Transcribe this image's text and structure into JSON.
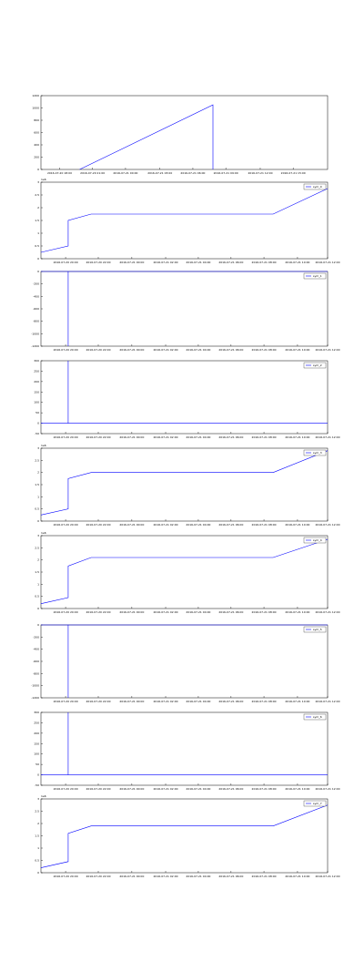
{
  "chart_data": [
    {
      "type": "line",
      "xlim": [
        0,
        10
      ],
      "ylim": [
        0,
        1200
      ],
      "yticks": [
        0,
        200,
        400,
        600,
        800,
        1000,
        1200
      ],
      "xticks": [
        {
          "value": 0.65,
          "label": "2016-07-20 18:00"
        },
        {
          "value": 1.8,
          "label": "2016-07-20 21:00"
        },
        {
          "value": 2.95,
          "label": "2016-07-21 00:00"
        },
        {
          "value": 4.15,
          "label": "2016-07-21 03:00"
        },
        {
          "value": 5.3,
          "label": "2016-07-21 06:00"
        },
        {
          "value": 6.45,
          "label": "2016-07-21 09:00"
        },
        {
          "value": 7.65,
          "label": "2016-07-21 12:00"
        },
        {
          "value": 8.8,
          "label": "2016-07-21 15:00"
        }
      ],
      "x": [
        1.35,
        6.0,
        6.0
      ],
      "series": [
        {
          "color": "#0000ff",
          "values": [
            0,
            1050,
            0
          ]
        }
      ]
    },
    {
      "type": "line",
      "xlim": [
        0,
        10
      ],
      "ylim": [
        0,
        3
      ],
      "yticks": [
        0,
        0.5,
        1,
        1.5,
        2,
        2.5,
        3
      ],
      "offset_label": "1e6",
      "xticks": [
        {
          "value": 0.86,
          "label": "2016-07-20 20:00"
        },
        {
          "value": 2.0,
          "label": "2016-07-20 22:00"
        },
        {
          "value": 3.17,
          "label": "2016-07-21 00:00"
        },
        {
          "value": 4.35,
          "label": "2016-07-21 02:00"
        },
        {
          "value": 5.49,
          "label": "2016-07-21 04:00"
        },
        {
          "value": 6.63,
          "label": "2016-07-21 06:00"
        },
        {
          "value": 7.78,
          "label": "2016-07-21 08:00"
        },
        {
          "value": 8.95,
          "label": "2016-07-21 10:00"
        },
        {
          "value": 10,
          "label": "2016-07-21 12:00"
        }
      ],
      "x": [
        0,
        0.95,
        0.95,
        1.75,
        8.1,
        10
      ],
      "series": [
        {
          "name": "sym_0",
          "color": "#0000ff",
          "values": [
            0.25,
            0.5,
            1.5,
            1.75,
            1.75,
            2.75
          ]
        }
      ]
    },
    {
      "type": "line",
      "xlim": [
        0,
        10
      ],
      "ylim": [
        -1200,
        0
      ],
      "yticks": [
        -1200,
        -1000,
        -800,
        -600,
        -400,
        -200,
        0
      ],
      "xticks": [
        {
          "value": 0.86,
          "label": "2016-07-20 20:00"
        },
        {
          "value": 2.0,
          "label": "2016-07-20 22:00"
        },
        {
          "value": 3.17,
          "label": "2016-07-21 00:00"
        },
        {
          "value": 4.35,
          "label": "2016-07-21 02:00"
        },
        {
          "value": 5.49,
          "label": "2016-07-21 04:00"
        },
        {
          "value": 6.63,
          "label": "2016-07-21 06:00"
        },
        {
          "value": 7.78,
          "label": "2016-07-21 08:00"
        },
        {
          "value": 8.95,
          "label": "2016-07-21 10:00"
        },
        {
          "value": 10,
          "label": "2016-07-21 12:00"
        }
      ],
      "x": [
        0,
        0.95,
        0.95,
        0.95,
        10
      ],
      "series": [
        {
          "name": "sym_1",
          "color": "#0000ff",
          "values": [
            0,
            0,
            -1200,
            0,
            0
          ]
        }
      ]
    },
    {
      "type": "line",
      "xlim": [
        0,
        10
      ],
      "ylim": [
        -50,
        300
      ],
      "yticks": [
        -50,
        0,
        50,
        100,
        150,
        200,
        250,
        300
      ],
      "xticks": [
        {
          "value": 0.86,
          "label": "2016-07-20 20:00"
        },
        {
          "value": 2.0,
          "label": "2016-07-20 22:00"
        },
        {
          "value": 3.17,
          "label": "2016-07-21 00:00"
        },
        {
          "value": 4.35,
          "label": "2016-07-21 02:00"
        },
        {
          "value": 5.49,
          "label": "2016-07-21 04:00"
        },
        {
          "value": 6.63,
          "label": "2016-07-21 06:00"
        },
        {
          "value": 7.78,
          "label": "2016-07-21 08:00"
        },
        {
          "value": 8.95,
          "label": "2016-07-21 10:00"
        },
        {
          "value": 10,
          "label": "2016-07-21 12:00"
        }
      ],
      "x": [
        0,
        0.95,
        0.95,
        0.95,
        10
      ],
      "series": [
        {
          "name": "sym_2",
          "color": "#0000ff",
          "values": [
            0,
            0,
            300,
            0,
            0
          ]
        }
      ]
    },
    {
      "type": "line",
      "xlim": [
        0,
        10
      ],
      "ylim": [
        0,
        3
      ],
      "yticks": [
        0,
        0.5,
        1,
        1.5,
        2,
        2.5,
        3
      ],
      "offset_label": "1e6",
      "xticks": [
        {
          "value": 0.86,
          "label": "2016-07-20 20:00"
        },
        {
          "value": 2.0,
          "label": "2016-07-20 22:00"
        },
        {
          "value": 3.17,
          "label": "2016-07-21 00:00"
        },
        {
          "value": 4.35,
          "label": "2016-07-21 02:00"
        },
        {
          "value": 5.49,
          "label": "2016-07-21 04:00"
        },
        {
          "value": 6.63,
          "label": "2016-07-21 06:00"
        },
        {
          "value": 7.78,
          "label": "2016-07-21 08:00"
        },
        {
          "value": 8.95,
          "label": "2016-07-21 10:00"
        },
        {
          "value": 10,
          "label": "2016-07-21 12:00"
        }
      ],
      "x": [
        0,
        0.95,
        0.95,
        1.75,
        8.1,
        10
      ],
      "series": [
        {
          "name": "sym_3",
          "color": "#0000ff",
          "values": [
            0.25,
            0.5,
            1.75,
            2.0,
            2.0,
            2.9
          ]
        }
      ]
    },
    {
      "type": "line",
      "xlim": [
        0,
        10
      ],
      "ylim": [
        0,
        3
      ],
      "yticks": [
        0,
        0.5,
        1,
        1.5,
        2,
        2.5,
        3
      ],
      "offset_label": "1e6",
      "xticks": [
        {
          "value": 0.86,
          "label": "2016-07-20 20:00"
        },
        {
          "value": 2.0,
          "label": "2016-07-20 22:00"
        },
        {
          "value": 3.17,
          "label": "2016-07-21 00:00"
        },
        {
          "value": 4.35,
          "label": "2016-07-21 02:00"
        },
        {
          "value": 5.49,
          "label": "2016-07-21 04:00"
        },
        {
          "value": 6.63,
          "label": "2016-07-21 06:00"
        },
        {
          "value": 7.78,
          "label": "2016-07-21 08:00"
        },
        {
          "value": 8.95,
          "label": "2016-07-21 10:00"
        },
        {
          "value": 10,
          "label": "2016-07-21 12:00"
        }
      ],
      "x": [
        0,
        0.95,
        0.95,
        1.75,
        8.1,
        10
      ],
      "series": [
        {
          "name": "sym_4",
          "color": "#0000ff",
          "values": [
            0.2,
            0.45,
            1.75,
            2.1,
            2.1,
            2.85
          ]
        }
      ]
    },
    {
      "type": "line",
      "xlim": [
        0,
        10
      ],
      "ylim": [
        -1200,
        0
      ],
      "yticks": [
        -1200,
        -1000,
        -800,
        -600,
        -400,
        -200,
        0
      ],
      "xticks": [
        {
          "value": 0.86,
          "label": "2016-07-20 20:00"
        },
        {
          "value": 2.0,
          "label": "2016-07-20 22:00"
        },
        {
          "value": 3.17,
          "label": "2016-07-21 00:00"
        },
        {
          "value": 4.35,
          "label": "2016-07-21 02:00"
        },
        {
          "value": 5.49,
          "label": "2016-07-21 04:00"
        },
        {
          "value": 6.63,
          "label": "2016-07-21 06:00"
        },
        {
          "value": 7.78,
          "label": "2016-07-21 08:00"
        },
        {
          "value": 8.95,
          "label": "2016-07-21 10:00"
        },
        {
          "value": 10,
          "label": "2016-07-21 12:00"
        }
      ],
      "x": [
        0,
        0.95,
        0.95,
        0.95,
        10
      ],
      "series": [
        {
          "name": "sym_5",
          "color": "#0000ff",
          "values": [
            0,
            0,
            -1200,
            0,
            0
          ]
        }
      ]
    },
    {
      "type": "line",
      "xlim": [
        0,
        10
      ],
      "ylim": [
        -50,
        300
      ],
      "yticks": [
        -50,
        0,
        50,
        100,
        150,
        200,
        250,
        300
      ],
      "xticks": [
        {
          "value": 0.86,
          "label": "2016-07-20 20:00"
        },
        {
          "value": 2.0,
          "label": "2016-07-20 22:00"
        },
        {
          "value": 3.17,
          "label": "2016-07-21 00:00"
        },
        {
          "value": 4.35,
          "label": "2016-07-21 02:00"
        },
        {
          "value": 5.49,
          "label": "2016-07-21 04:00"
        },
        {
          "value": 6.63,
          "label": "2016-07-21 06:00"
        },
        {
          "value": 7.78,
          "label": "2016-07-21 08:00"
        },
        {
          "value": 8.95,
          "label": "2016-07-21 10:00"
        },
        {
          "value": 10,
          "label": "2016-07-21 12:00"
        }
      ],
      "x": [
        0,
        0.95,
        0.95,
        0.95,
        10
      ],
      "series": [
        {
          "name": "sym_6",
          "color": "#0000ff",
          "values": [
            0,
            0,
            300,
            0,
            0
          ]
        }
      ]
    },
    {
      "type": "line",
      "xlim": [
        0,
        10
      ],
      "ylim": [
        0,
        3
      ],
      "yticks": [
        0,
        0.5,
        1,
        1.5,
        2,
        2.5,
        3
      ],
      "offset_label": "1e6",
      "xticks": [
        {
          "value": 0.86,
          "label": "2016-07-20 20:00"
        },
        {
          "value": 2.0,
          "label": "2016-07-20 22:00"
        },
        {
          "value": 3.17,
          "label": "2016-07-21 00:00"
        },
        {
          "value": 4.35,
          "label": "2016-07-21 02:00"
        },
        {
          "value": 5.49,
          "label": "2016-07-21 04:00"
        },
        {
          "value": 6.63,
          "label": "2016-07-21 06:00"
        },
        {
          "value": 7.78,
          "label": "2016-07-21 08:00"
        },
        {
          "value": 8.95,
          "label": "2016-07-21 10:00"
        },
        {
          "value": 10,
          "label": "2016-07-21 12:00"
        }
      ],
      "x": [
        0,
        0.95,
        0.95,
        1.75,
        8.1,
        10
      ],
      "series": [
        {
          "name": "sym_7",
          "color": "#0000ff",
          "values": [
            0.2,
            0.45,
            1.6,
            1.9,
            1.9,
            2.75
          ]
        }
      ]
    }
  ]
}
